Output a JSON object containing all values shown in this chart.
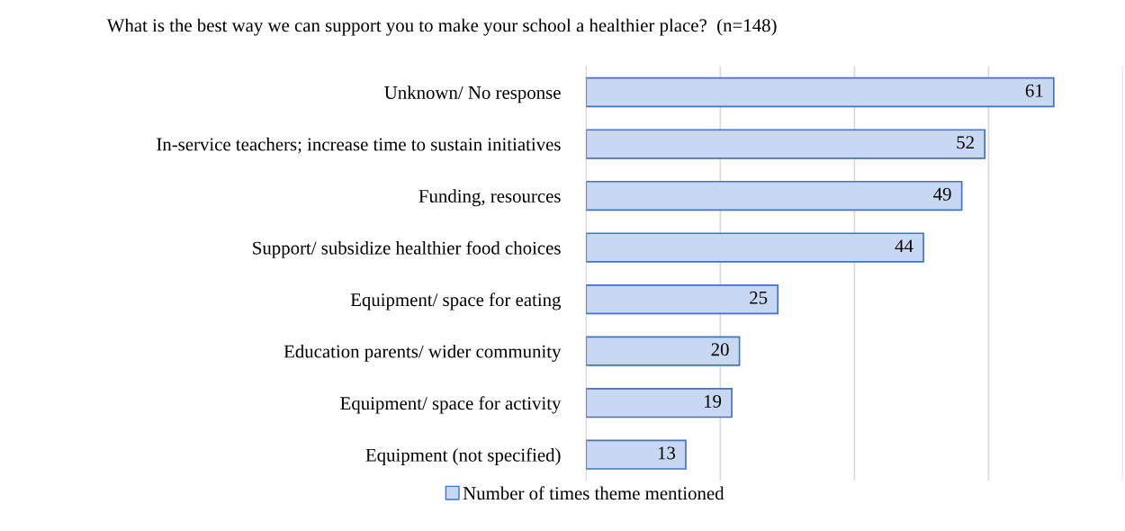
{
  "chart_data": {
    "type": "bar",
    "orientation": "horizontal",
    "title": "What is the best way we can support you to make your school a healthier place?  (n=148)",
    "categories": [
      "Unknown/ No response",
      "In-service teachers; increase time to sustain initiatives",
      "Funding, resources",
      "Support/ subsidize healthier food choices",
      "Equipment/ space for eating",
      "Education parents/ wider community",
      "Equipment/ space for activity",
      "Equipment (not specified)"
    ],
    "series": [
      {
        "name": "Number of times theme mentioned",
        "color": "#c9d8f2",
        "values": [
          61,
          52,
          49,
          44,
          25,
          20,
          19,
          13
        ]
      }
    ],
    "xlim": [
      0,
      70
    ],
    "xticks": [
      {
        "value": 0,
        "label": null
      },
      {
        "value": 17.5,
        "label": null
      },
      {
        "value": 35,
        "label": null
      },
      {
        "value": 52.5,
        "label": null
      },
      {
        "value": 70,
        "label": null
      }
    ],
    "tick_labels": "y",
    "grid": "x",
    "data_labels": true,
    "legend": "bottom"
  }
}
